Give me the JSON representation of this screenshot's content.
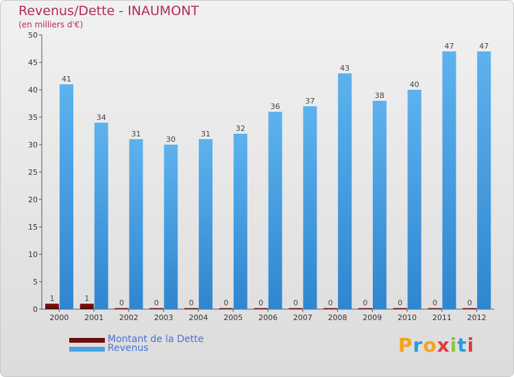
{
  "title": "Revenus/Dette - INAUMONT",
  "subtitle": "(en milliers d'€)",
  "logo_text": "Proxiti",
  "colors": {
    "debt": "#6b0f0f",
    "revenue": "#4aa3e6",
    "title": "#b22a5c",
    "legend_text": "#4a6fd8"
  },
  "legend": [
    {
      "label": "Montant de la Dette",
      "color": "#6b0f0f"
    },
    {
      "label": "Revenus",
      "color": "#4aa3e6"
    }
  ],
  "chart_data": {
    "type": "bar",
    "title": "Revenus/Dette - INAUMONT",
    "subtitle": "(en milliers d'€)",
    "categories": [
      "2000",
      "2001",
      "2002",
      "2003",
      "2004",
      "2005",
      "2006",
      "2007",
      "2008",
      "2009",
      "2010",
      "2011",
      "2012"
    ],
    "series": [
      {
        "name": "Montant de la Dette",
        "values": [
          1,
          1,
          0,
          0,
          0,
          0,
          0,
          0,
          0,
          0,
          0,
          0,
          0
        ]
      },
      {
        "name": "Revenus",
        "values": [
          41,
          34,
          31,
          30,
          31,
          32,
          36,
          37,
          43,
          38,
          40,
          47,
          47
        ]
      }
    ],
    "ylim": [
      0,
      50
    ],
    "yticks": [
      0,
      5,
      10,
      15,
      20,
      25,
      30,
      35,
      40,
      45,
      50
    ],
    "grid": false,
    "legend_position": "bottom-left"
  }
}
